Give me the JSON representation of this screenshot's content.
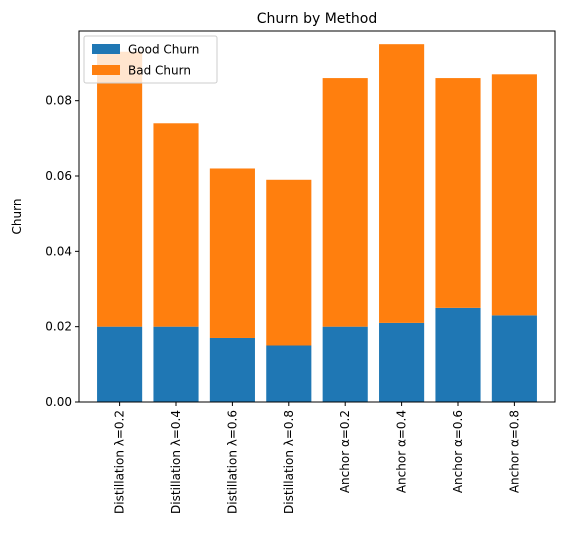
{
  "chart_data": {
    "type": "bar",
    "stacked": true,
    "title": "Churn by Method",
    "xlabel": "",
    "ylabel": "Churn",
    "ylim": [
      0,
      0.0985
    ],
    "yticks": [
      0.0,
      0.02,
      0.04,
      0.06,
      0.08
    ],
    "ytick_labels": [
      "0.00",
      "0.02",
      "0.04",
      "0.06",
      "0.08"
    ],
    "grid": false,
    "legend_position": "top-left",
    "categories": [
      "Distillation λ=0.2",
      "Distillation λ=0.4",
      "Distillation λ=0.6",
      "Distillation λ=0.8",
      "Anchor α=0.2",
      "Anchor α=0.4",
      "Anchor α=0.6",
      "Anchor α=0.8"
    ],
    "series": [
      {
        "name": "Good Churn",
        "color": "#1f77b4",
        "values": [
          0.02,
          0.02,
          0.017,
          0.015,
          0.02,
          0.021,
          0.025,
          0.023
        ]
      },
      {
        "name": "Bad Churn",
        "color": "#ff7f0e",
        "values": [
          0.073,
          0.054,
          0.045,
          0.044,
          0.066,
          0.074,
          0.061,
          0.064
        ]
      }
    ]
  }
}
